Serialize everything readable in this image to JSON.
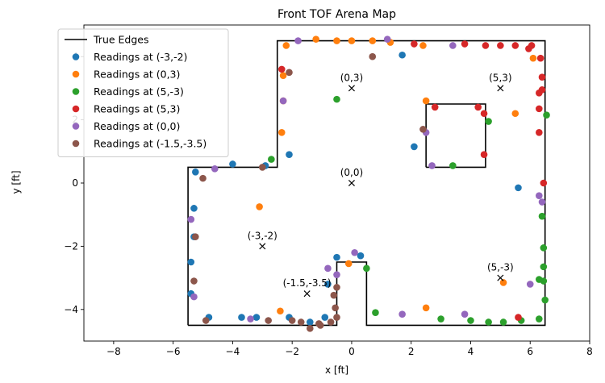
{
  "chart_data": {
    "type": "scatter",
    "title": "Front TOF Arena Map",
    "xlabel": "x [ft]",
    "ylabel": "y [ft]",
    "xlim": [
      -9,
      8
    ],
    "ylim": [
      -5,
      5
    ],
    "xticks": [
      -8,
      -6,
      -4,
      -2,
      0,
      2,
      4,
      6,
      8
    ],
    "yticks": [
      -4,
      -2,
      0,
      2,
      4
    ],
    "grid": false,
    "legend_position": "top-left",
    "true_edges": {
      "name": "True Edges",
      "color": "#000000",
      "outer": [
        [
          -5.5,
          -4.5
        ],
        [
          -0.5,
          -4.5
        ],
        [
          -0.5,
          -2.5
        ],
        [
          0.5,
          -2.5
        ],
        [
          0.5,
          -4.5
        ],
        [
          6.5,
          -4.5
        ],
        [
          6.5,
          4.5
        ],
        [
          -2.5,
          4.5
        ],
        [
          -2.5,
          0.5
        ],
        [
          -5.5,
          0.5
        ],
        [
          -5.5,
          -4.5
        ]
      ],
      "inner": [
        [
          2.5,
          0.5
        ],
        [
          4.5,
          0.5
        ],
        [
          4.5,
          2.5
        ],
        [
          2.5,
          2.5
        ],
        [
          2.5,
          0.5
        ]
      ]
    },
    "annotations": [
      {
        "label": "(0,3)",
        "x": 0,
        "y": 3
      },
      {
        "label": "(5,3)",
        "x": 5,
        "y": 3
      },
      {
        "label": "(0,0)",
        "x": 0,
        "y": 0
      },
      {
        "label": "(-3,-2)",
        "x": -3,
        "y": -2
      },
      {
        "label": "(5,-3)",
        "x": 5,
        "y": -3
      },
      {
        "label": "(-1.5,-3.5)",
        "x": -1.5,
        "y": -3.5
      }
    ],
    "series": [
      {
        "name": "Readings at (-3,-2)",
        "color": "#1f77b4",
        "points": [
          [
            -5.4,
            -3.5
          ],
          [
            -5.4,
            -2.5
          ],
          [
            -5.3,
            -1.7
          ],
          [
            -5.3,
            -0.8
          ],
          [
            -5.25,
            0.35
          ],
          [
            -4.8,
            -4.25
          ],
          [
            -4,
            0.6
          ],
          [
            -3.7,
            -4.25
          ],
          [
            -3.2,
            -4.25
          ],
          [
            -2.9,
            0.55
          ],
          [
            -2.1,
            0.9
          ],
          [
            -2.1,
            -4.25
          ],
          [
            -1.4,
            -4.4
          ],
          [
            -0.9,
            -4.25
          ],
          [
            -0.8,
            -3.2
          ],
          [
            -0.5,
            -2.35
          ],
          [
            0.3,
            -2.3
          ],
          [
            1.7,
            4.05
          ],
          [
            2.1,
            1.15
          ],
          [
            5.6,
            -0.15
          ]
        ]
      },
      {
        "name": "Readings at (0,3)",
        "color": "#ff7f0e",
        "points": [
          [
            -3.1,
            -0.75
          ],
          [
            -2.4,
            -4.05
          ],
          [
            -2.35,
            1.6
          ],
          [
            -2.3,
            2.6
          ],
          [
            -2.3,
            3.4
          ],
          [
            -2.2,
            4.35
          ],
          [
            -1.2,
            4.55
          ],
          [
            -0.5,
            4.5
          ],
          [
            -0.1,
            -2.55
          ],
          [
            0,
            4.5
          ],
          [
            0.7,
            4.5
          ],
          [
            1.3,
            4.45
          ],
          [
            2.4,
            4.35
          ],
          [
            2.5,
            2.6
          ],
          [
            2.5,
            -3.95
          ],
          [
            5.5,
            2.2
          ],
          [
            6.1,
            3.95
          ],
          [
            5.1,
            -3.15
          ]
        ]
      },
      {
        "name": "Readings at (5,-3)",
        "color": "#2ca02c",
        "points": [
          [
            -2.7,
            0.75
          ],
          [
            -0.5,
            2.65
          ],
          [
            0.5,
            -2.7
          ],
          [
            0.8,
            -4.1
          ],
          [
            3,
            -4.3
          ],
          [
            3.4,
            0.55
          ],
          [
            4,
            -4.35
          ],
          [
            4.6,
            1.95
          ],
          [
            4.6,
            -4.4
          ],
          [
            5.1,
            -4.4
          ],
          [
            5.7,
            -4.35
          ],
          [
            6.3,
            -3.05
          ],
          [
            6.3,
            -4.3
          ],
          [
            6.4,
            -1.05
          ],
          [
            6.45,
            -2.05
          ],
          [
            6.45,
            -2.65
          ],
          [
            6.45,
            -3.1
          ],
          [
            6.5,
            -3.7
          ],
          [
            6.55,
            2.15
          ]
        ]
      },
      {
        "name": "Readings at (5,3)",
        "color": "#d62728",
        "points": [
          [
            -2.35,
            3.6
          ],
          [
            2.1,
            4.4
          ],
          [
            2.8,
            2.4
          ],
          [
            3.8,
            4.4
          ],
          [
            4.25,
            2.4
          ],
          [
            4.45,
            2.2
          ],
          [
            4.45,
            0.9
          ],
          [
            4.5,
            4.35
          ],
          [
            5,
            4.35
          ],
          [
            5.5,
            4.35
          ],
          [
            5.95,
            4.25
          ],
          [
            6.05,
            4.35
          ],
          [
            6.3,
            2.35
          ],
          [
            6.3,
            2.85
          ],
          [
            6.3,
            1.6
          ],
          [
            6.35,
            3.95
          ],
          [
            6.4,
            2.95
          ],
          [
            6.4,
            3.35
          ],
          [
            6.45,
            0
          ],
          [
            5.6,
            -4.25
          ]
        ]
      },
      {
        "name": "Readings at (0,0)",
        "color": "#9467bd",
        "points": [
          [
            -5.4,
            -1.15
          ],
          [
            -5.3,
            -3.6
          ],
          [
            -4.6,
            0.45
          ],
          [
            -3.4,
            -4.3
          ],
          [
            -2.3,
            2.6
          ],
          [
            -1.8,
            4.5
          ],
          [
            -0.8,
            -2.7
          ],
          [
            -0.5,
            -2.9
          ],
          [
            0.1,
            -2.2
          ],
          [
            1.2,
            4.55
          ],
          [
            1.7,
            -4.15
          ],
          [
            2.5,
            1.6
          ],
          [
            2.7,
            0.55
          ],
          [
            3.4,
            4.35
          ],
          [
            3.8,
            -4.15
          ],
          [
            6,
            -3.2
          ],
          [
            6.3,
            -0.4
          ],
          [
            6.4,
            -0.6
          ]
        ]
      },
      {
        "name": "Readings at (-1.5,-3.5)",
        "color": "#8c564b",
        "points": [
          [
            -5.3,
            -3.1
          ],
          [
            -5.25,
            -1.7
          ],
          [
            -5,
            0.15
          ],
          [
            -4.9,
            -4.35
          ],
          [
            -3,
            0.5
          ],
          [
            -2.8,
            -4.35
          ],
          [
            -2.1,
            3.5
          ],
          [
            -2,
            -4.35
          ],
          [
            -1.7,
            -4.4
          ],
          [
            -1.4,
            -4.6
          ],
          [
            -1.1,
            -4.45
          ],
          [
            -1.05,
            -4.5
          ],
          [
            -0.7,
            -4.4
          ],
          [
            -0.6,
            -3.55
          ],
          [
            -0.55,
            -3.95
          ],
          [
            -0.5,
            -3.3
          ],
          [
            -0.5,
            -4.25
          ],
          [
            0.7,
            4
          ],
          [
            2.4,
            1.7
          ]
        ]
      }
    ]
  }
}
